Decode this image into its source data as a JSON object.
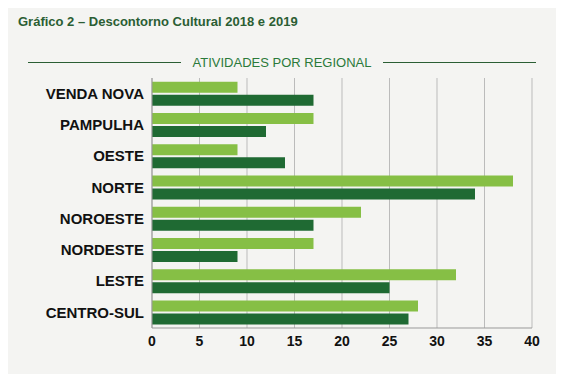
{
  "chart_data": {
    "type": "bar",
    "orientation": "horizontal",
    "title": "Gráfico 2 – Descontorno Cultural 2018 e 2019",
    "subtitle": "ATIVIDADES POR REGIONAL",
    "categories": [
      "VENDA NOVA",
      "PAMPULHA",
      "OESTE",
      "NORTE",
      "NOROESTE",
      "NORDESTE",
      "LESTE",
      "CENTRO-SUL"
    ],
    "series": [
      {
        "color": "#86bf45",
        "values": [
          9,
          17,
          9,
          38,
          22,
          17,
          32,
          28
        ]
      },
      {
        "color": "#1f6a33",
        "values": [
          17,
          12,
          14,
          34,
          17,
          9,
          25,
          27
        ]
      }
    ],
    "xlim": [
      0,
      40
    ],
    "xticks": [
      0,
      5,
      10,
      15,
      20,
      25,
      30,
      35,
      40
    ],
    "grid": true
  }
}
